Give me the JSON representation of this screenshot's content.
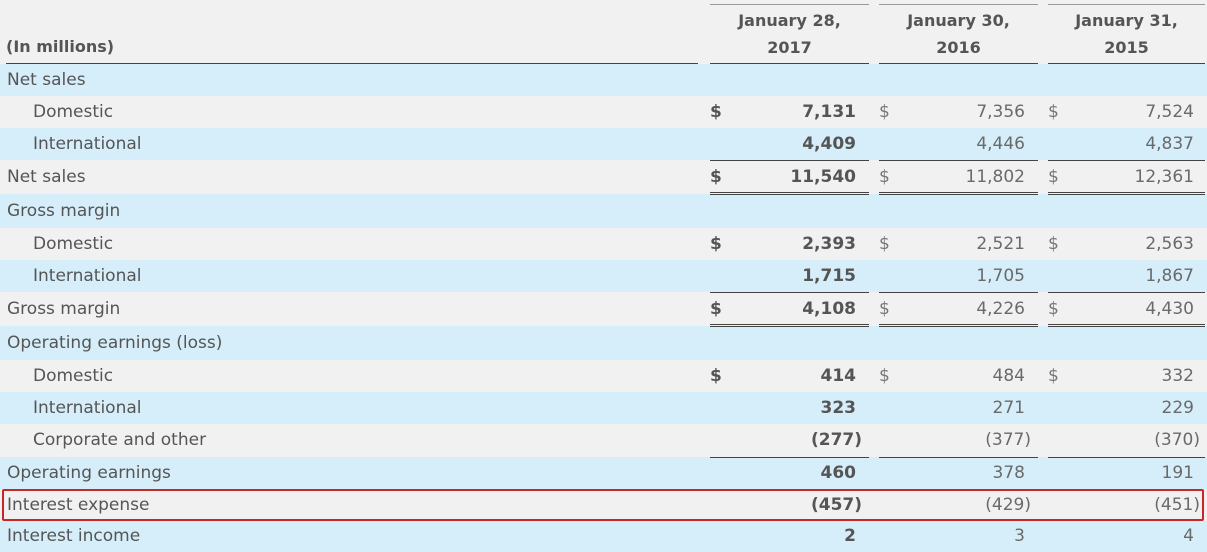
{
  "table": {
    "unit_label": "(In millions)",
    "columns": [
      {
        "line1": "January 28,",
        "line2": "2017"
      },
      {
        "line1": "January 30,",
        "line2": "2016"
      },
      {
        "line1": "January 31,",
        "line2": "2015"
      }
    ],
    "rows": [
      {
        "label": "Net sales",
        "indent": 0,
        "values": [
          "",
          "",
          ""
        ],
        "currency": false
      },
      {
        "label": "Domestic",
        "indent": 1,
        "values": [
          "7,131",
          "7,356",
          "7,524"
        ],
        "currency": true
      },
      {
        "label": "International",
        "indent": 1,
        "values": [
          "4,409",
          "4,446",
          "4,837"
        ],
        "currency": false
      },
      {
        "label": "Net sales",
        "indent": 0,
        "values": [
          "11,540",
          "11,802",
          "12,361"
        ],
        "currency": true
      },
      {
        "label": "Gross margin",
        "indent": 0,
        "values": [
          "",
          "",
          ""
        ],
        "currency": false
      },
      {
        "label": "Domestic",
        "indent": 1,
        "values": [
          "2,393",
          "2,521",
          "2,563"
        ],
        "currency": true
      },
      {
        "label": "International",
        "indent": 1,
        "values": [
          "1,715",
          "1,705",
          "1,867"
        ],
        "currency": false
      },
      {
        "label": "Gross margin",
        "indent": 0,
        "values": [
          "4,108",
          "4,226",
          "4,430"
        ],
        "currency": true
      },
      {
        "label": "Operating earnings (loss)",
        "indent": 0,
        "values": [
          "",
          "",
          ""
        ],
        "currency": false
      },
      {
        "label": "Domestic",
        "indent": 1,
        "values": [
          "414",
          "484",
          "332"
        ],
        "currency": true
      },
      {
        "label": "International",
        "indent": 1,
        "values": [
          "323",
          "271",
          "229"
        ],
        "currency": false
      },
      {
        "label": "Corporate and other",
        "indent": 1,
        "values": [
          "(277)",
          "(377)",
          "(370)"
        ],
        "currency": false
      },
      {
        "label": "Operating earnings",
        "indent": 0,
        "values": [
          "460",
          "378",
          "191"
        ],
        "currency": false
      },
      {
        "label": "Interest expense",
        "indent": 0,
        "values": [
          "(457)",
          "(429)",
          "(451)"
        ],
        "currency": false,
        "highlighted": true
      },
      {
        "label": "Interest income",
        "indent": 0,
        "values": [
          "2",
          "3",
          "4"
        ],
        "currency": false
      }
    ],
    "currency_symbol": "$",
    "highlight_color": "#c62828",
    "band_color": "#d5eefa"
  }
}
